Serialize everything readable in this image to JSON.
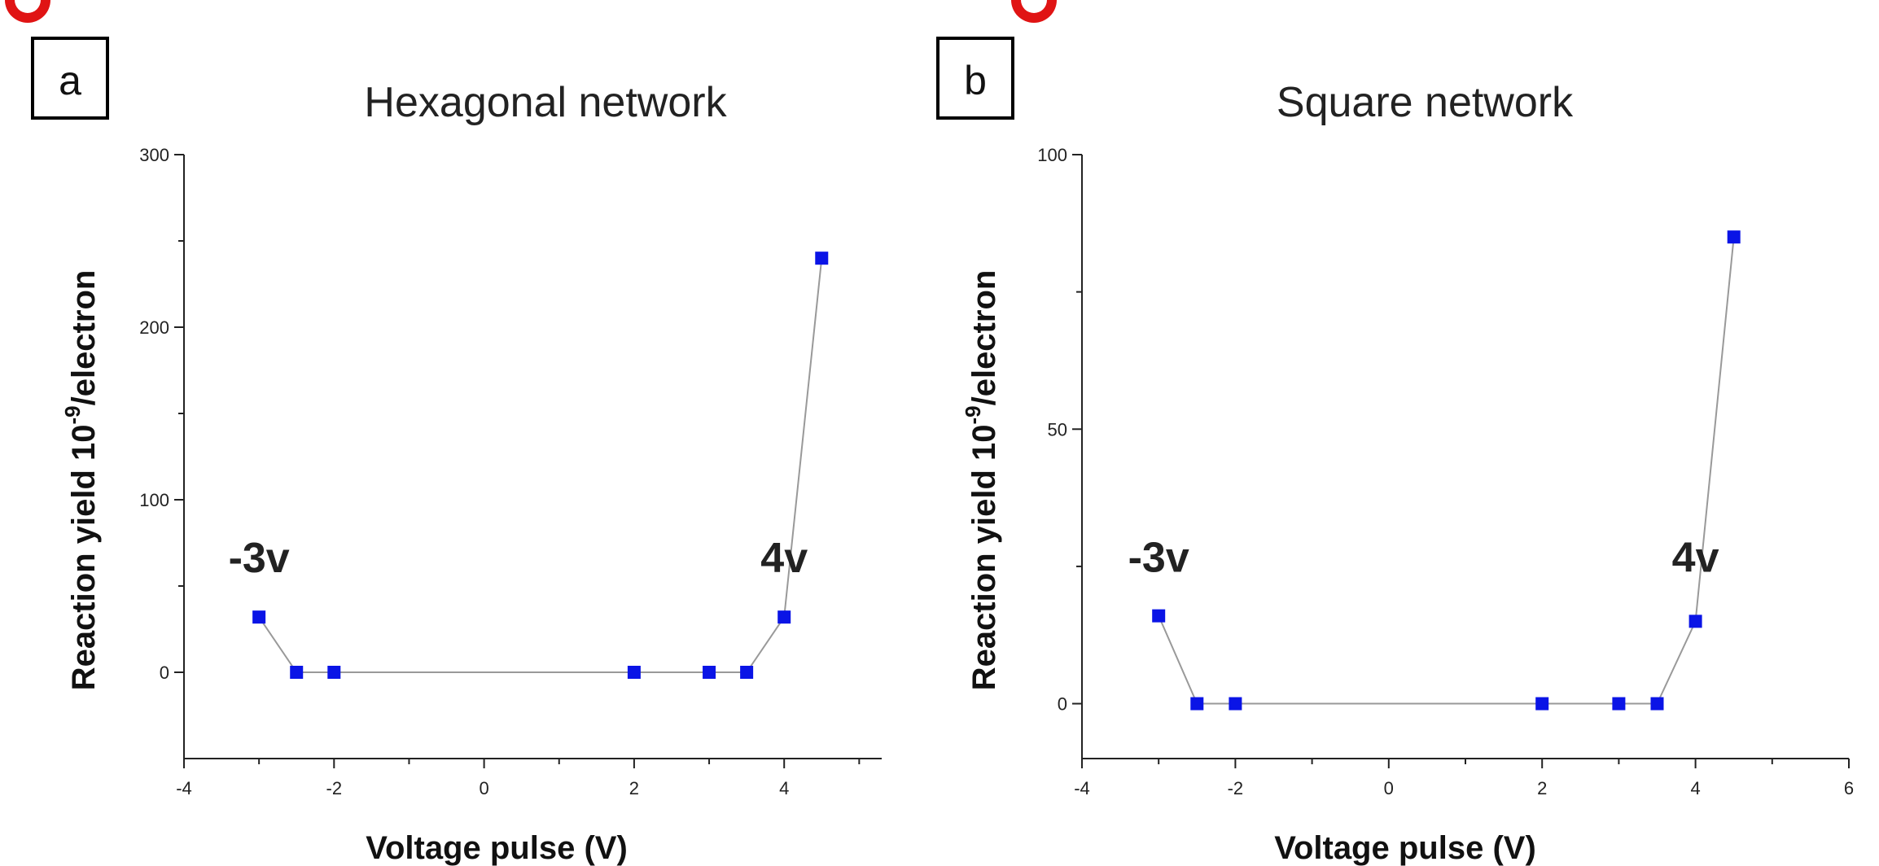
{
  "colors": {
    "marker": "#0a14e6",
    "line": "#999999",
    "axis": "#222222",
    "partial_glyph": "#e01414"
  },
  "chart_data": [
    {
      "type": "line",
      "panel_label": "a",
      "title": "Hexagonal network",
      "xlabel": "Voltage pulse (V)",
      "ylabel": "Reaction yield 10^-9/electron",
      "ylabel_text": "Reaction yield 10",
      "ylabel_exp": "-9",
      "ylabel_tail": "/electron",
      "xlim": [
        -4,
        5.3
      ],
      "ylim": [
        -50,
        300
      ],
      "xticks": [
        -4,
        -2,
        0,
        2,
        4
      ],
      "yticks": [
        0,
        100,
        200,
        300
      ],
      "xtick_labels": [
        "-4",
        "-2",
        "0",
        "2",
        "4"
      ],
      "ytick_labels": [
        "0",
        "100",
        "200",
        "300"
      ],
      "series": [
        {
          "x": [
            -3,
            -2.5,
            -2,
            2,
            3,
            3.5,
            4,
            4.5
          ],
          "y": [
            32,
            0,
            0,
            0,
            0,
            0,
            32,
            240
          ]
        }
      ],
      "annotations": [
        {
          "text": "-3v",
          "x": -3.0,
          "y": 58
        },
        {
          "text": "4v",
          "x": 4.0,
          "y": 58
        }
      ],
      "grid": false,
      "legend": "none"
    },
    {
      "type": "line",
      "panel_label": "b",
      "title": "Square  network",
      "xlabel": "Voltage pulse (V)",
      "ylabel": "Reaction yield 10^-9/electron",
      "ylabel_text": "Reaction yield 10",
      "ylabel_exp": "-9",
      "ylabel_tail": "/electron",
      "xlim": [
        -4,
        6
      ],
      "ylim": [
        -10,
        100
      ],
      "xticks": [
        -4,
        -2,
        0,
        2,
        4,
        6
      ],
      "yticks": [
        0,
        50,
        100
      ],
      "xtick_labels": [
        "-4",
        "-2",
        "0",
        "2",
        "4",
        "6"
      ],
      "ytick_labels": [
        "0",
        "50",
        "100"
      ],
      "series": [
        {
          "x": [
            -3,
            -2.5,
            -2,
            2,
            3,
            3.5,
            4,
            4.5
          ],
          "y": [
            16,
            0,
            0,
            0,
            0,
            0,
            15,
            85
          ]
        }
      ],
      "annotations": [
        {
          "text": "-3v",
          "x": -3.0,
          "y": 24
        },
        {
          "text": "4v",
          "x": 4.0,
          "y": 24
        }
      ],
      "grid": false,
      "legend": "none"
    }
  ]
}
